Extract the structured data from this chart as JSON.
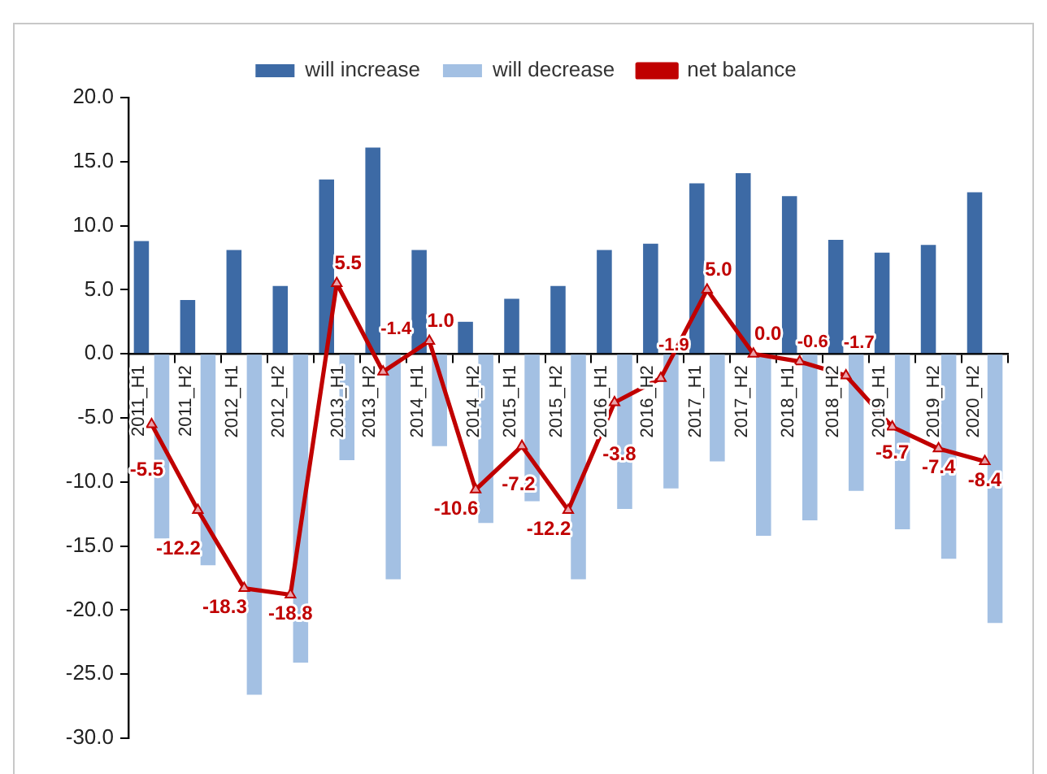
{
  "chart_data": {
    "type": "bar",
    "categories": [
      "2011_H1",
      "2011_H2",
      "2012_H1",
      "2012_H2",
      "2013_H1",
      "2013_H2",
      "2014_H1",
      "2014_H2",
      "2015_H1",
      "2015_H2",
      "2016_H1",
      "2016_H2",
      "2017_H1",
      "2017_H2",
      "2018_H1",
      "2018_H2",
      "2019_H1",
      "2019_H2",
      "2020_H2"
    ],
    "series": [
      {
        "name": "will increase",
        "type": "bar",
        "color": "#3d6aa5",
        "values": [
          8.8,
          4.2,
          8.1,
          5.3,
          13.6,
          16.1,
          8.1,
          2.5,
          4.3,
          5.3,
          8.1,
          8.6,
          13.3,
          14.1,
          12.3,
          8.9,
          7.9,
          8.5,
          12.6
        ]
      },
      {
        "name": "will decrease",
        "type": "bar",
        "color": "#a3c0e3",
        "values": [
          -14.4,
          -16.5,
          -26.6,
          -24.1,
          -8.3,
          -17.6,
          -7.2,
          -13.2,
          -11.5,
          -17.6,
          -12.1,
          -10.5,
          -8.4,
          -14.2,
          -13.0,
          -10.7,
          -13.7,
          -16.0,
          -21.0
        ]
      },
      {
        "name": "net balance",
        "type": "line",
        "color": "#c00000",
        "values": [
          -5.5,
          -12.2,
          -18.3,
          -18.8,
          5.5,
          -1.4,
          1.0,
          -10.6,
          -7.2,
          -12.2,
          -3.8,
          -1.9,
          5.0,
          0.0,
          -0.6,
          -1.7,
          -5.7,
          -7.4,
          -8.4
        ],
        "value_labels": [
          "-5.5",
          "-12.2",
          "-18.3",
          "-18.8",
          "5.5",
          "-1.4",
          "1.0",
          "-10.6",
          "-7.2",
          "-12.2",
          "-3.8",
          "-1.9",
          "5.0",
          "0.0",
          "-0.6",
          "-1.7",
          "-5.7",
          "-7.4",
          "-8.4"
        ]
      }
    ],
    "ylim": [
      -30,
      20
    ],
    "yticks": [
      {
        "value": -30,
        "label": "-30.0"
      },
      {
        "value": -25,
        "label": "-25.0"
      },
      {
        "value": -20,
        "label": "-20.0"
      },
      {
        "value": -15,
        "label": "-15.0"
      },
      {
        "value": -10,
        "label": "-10.0"
      },
      {
        "value": -5,
        "label": "-5.0"
      },
      {
        "value": 0,
        "label": "0.0"
      },
      {
        "value": 5,
        "label": "5.0"
      },
      {
        "value": 10,
        "label": "10.0"
      },
      {
        "value": 15,
        "label": "15.0"
      },
      {
        "value": 20,
        "label": "20.0"
      }
    ],
    "legend": "top",
    "grid": false,
    "marker": "triangle"
  }
}
